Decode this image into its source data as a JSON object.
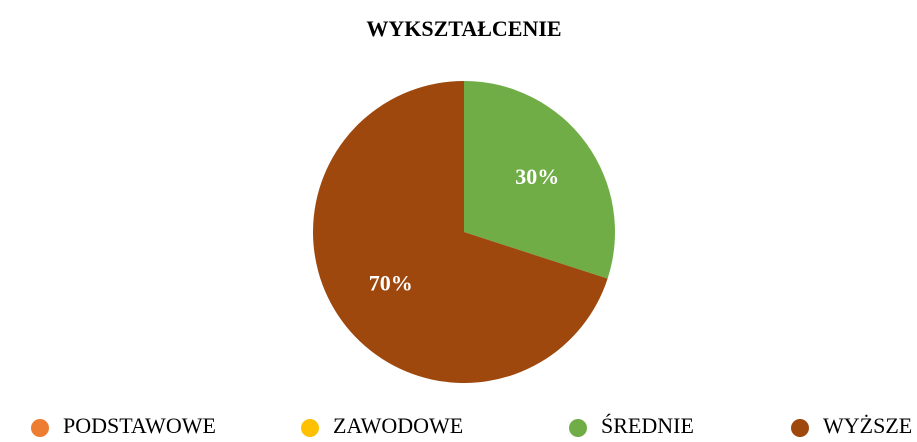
{
  "chart_data": {
    "type": "pie",
    "title": "WYKSZTAŁCENIE",
    "categories": [
      "PODSTAWOWE",
      "ZAWODOWE",
      "ŚREDNIE",
      "WYŻSZE"
    ],
    "values": [
      0,
      0,
      30,
      70
    ],
    "value_labels": [
      null,
      null,
      "30%",
      "70%"
    ],
    "colors": [
      "#ed7d31",
      "#ffc000",
      "#70ad47",
      "#9e480e"
    ],
    "legend": "bottom"
  }
}
